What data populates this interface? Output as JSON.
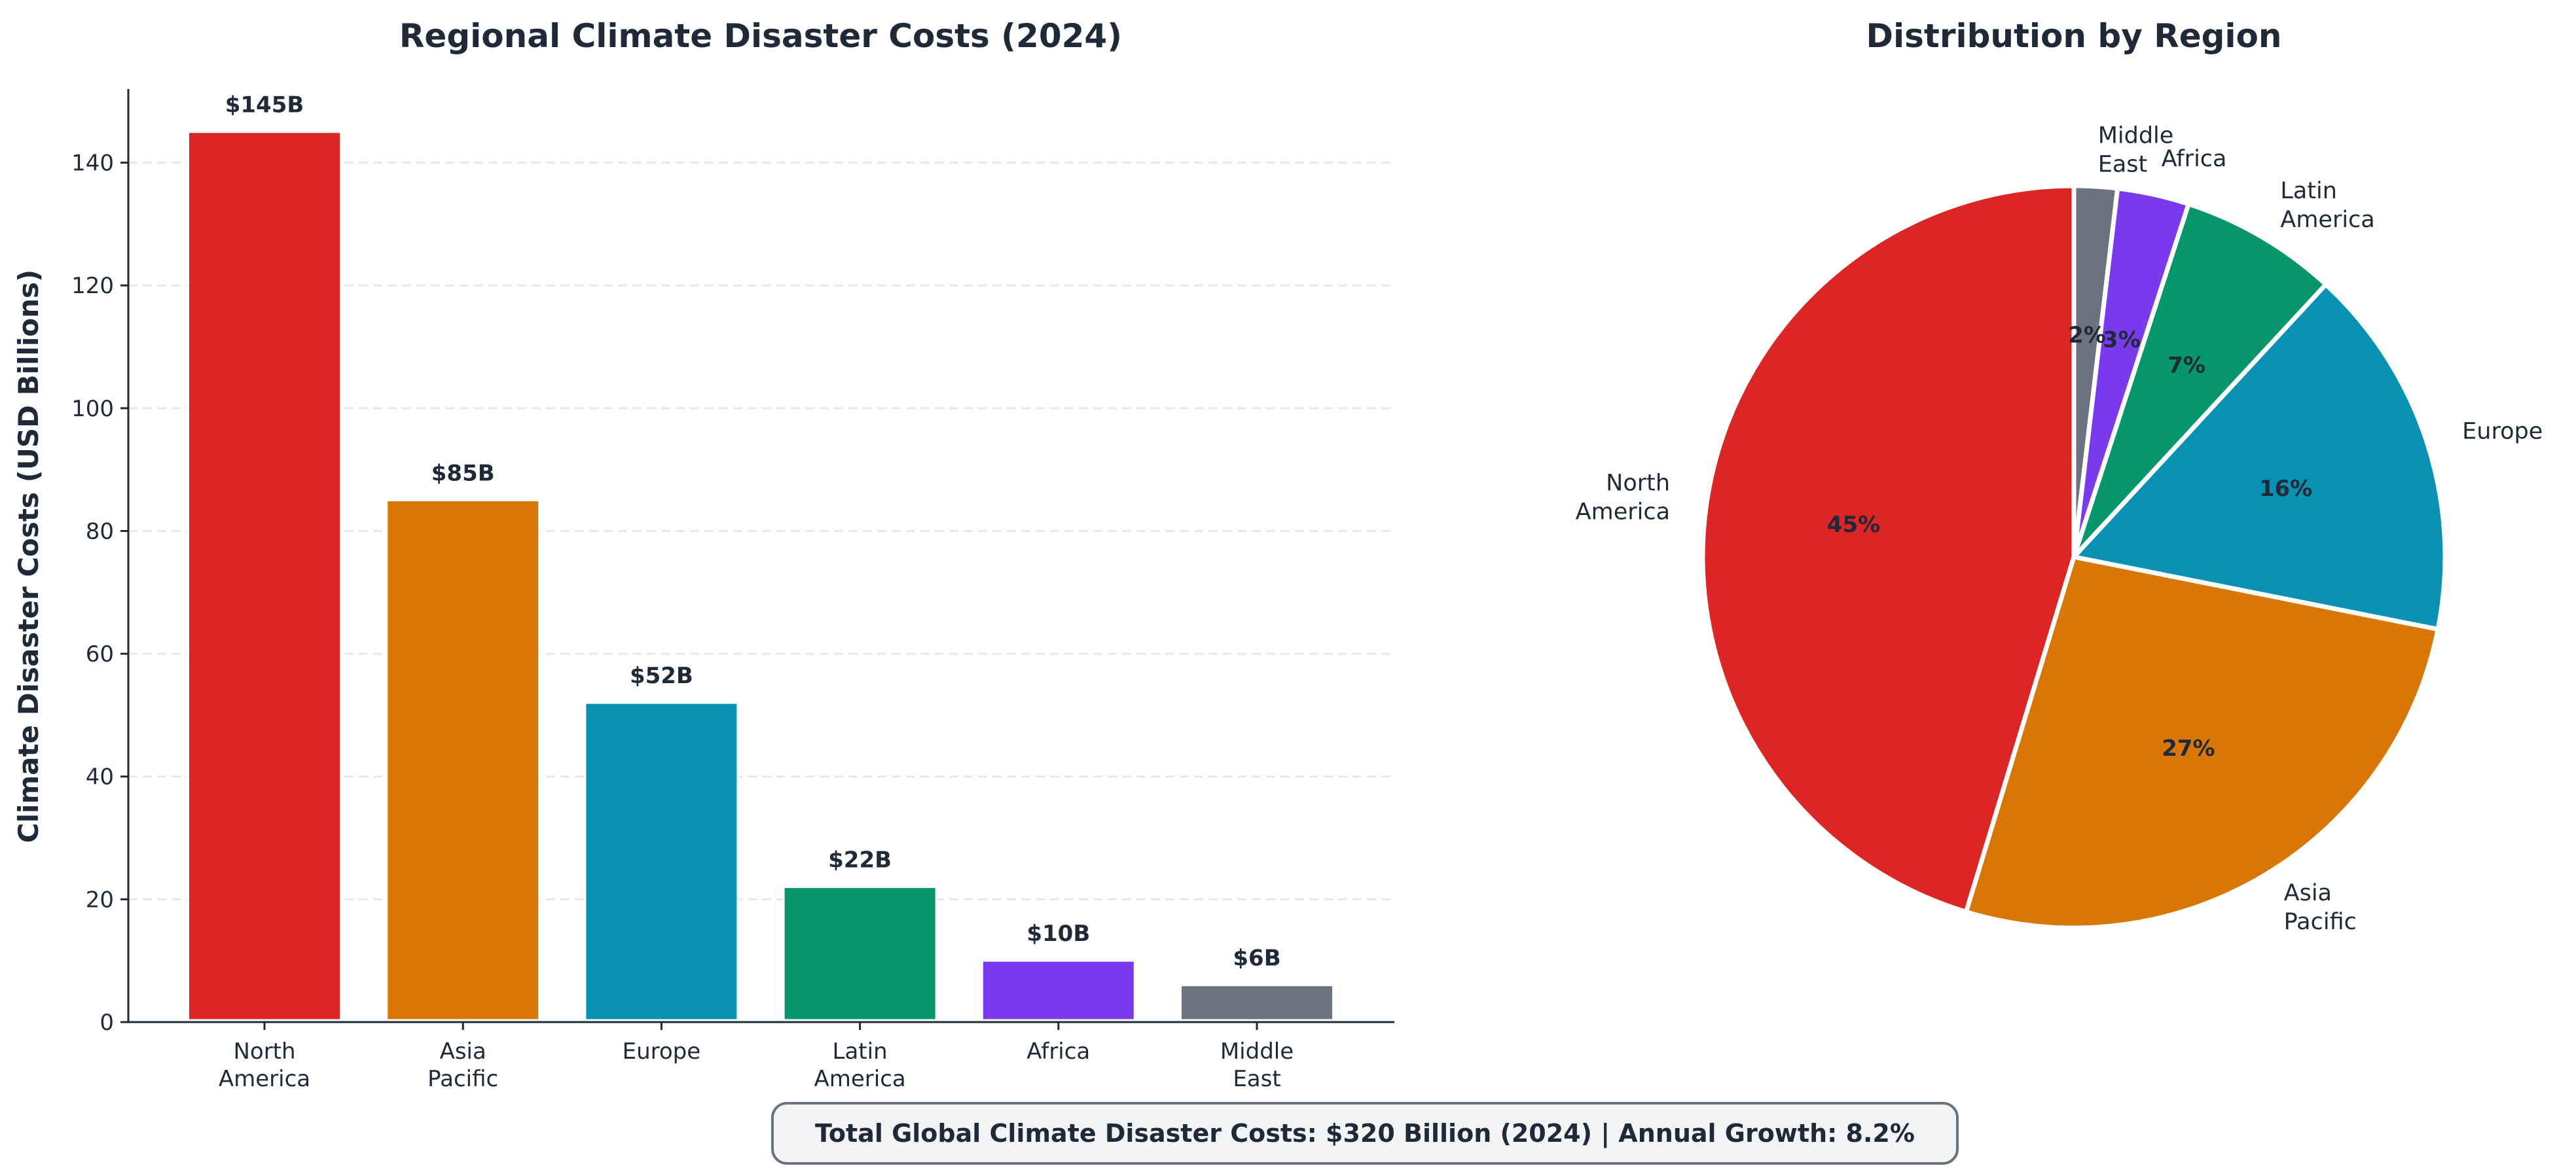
{
  "chart_data": [
    {
      "type": "bar",
      "title": "Regional Climate Disaster Costs (2024)",
      "xlabel": "",
      "ylabel": "Climate Disaster Costs (USD Billions)",
      "categories": [
        "North\nAmerica",
        "Asia\nPacific",
        "Europe",
        "Latin\nAmerica",
        "Africa",
        "Middle\nEast"
      ],
      "values": [
        145,
        85,
        52,
        22,
        10,
        6
      ],
      "data_labels": [
        "$145B",
        "$85B",
        "$52B",
        "$22B",
        "$10B",
        "$6B"
      ],
      "colors": [
        "#dc2626",
        "#d97706",
        "#0891b2",
        "#059669",
        "#7c3aed",
        "#6b7280"
      ],
      "ylim": [
        0,
        152
      ],
      "yticks": [
        0,
        20,
        40,
        60,
        80,
        100,
        120,
        140
      ],
      "grid": "y-dashed"
    },
    {
      "type": "pie",
      "title": "Distribution by Region",
      "labels": [
        "North\nAmerica",
        "Asia\nPacific",
        "Europe",
        "Latin\nAmerica",
        "Africa",
        "Middle\nEast"
      ],
      "values": [
        145,
        85,
        52,
        22,
        10,
        6
      ],
      "pct_labels": [
        "45%",
        "27%",
        "16%",
        "7%",
        "3%",
        "2%"
      ],
      "colors": [
        "#dc2626",
        "#d97706",
        "#0891b2",
        "#059669",
        "#7c3aed",
        "#6b7280"
      ],
      "start_angle": 90,
      "direction": "counterclockwise"
    }
  ],
  "footer": {
    "text": "Total Global Climate Disaster Costs: $320 Billion (2024) | Annual Growth: 8.2%",
    "border_color": "#6b7280",
    "fill_color": "#f3f4f6"
  }
}
